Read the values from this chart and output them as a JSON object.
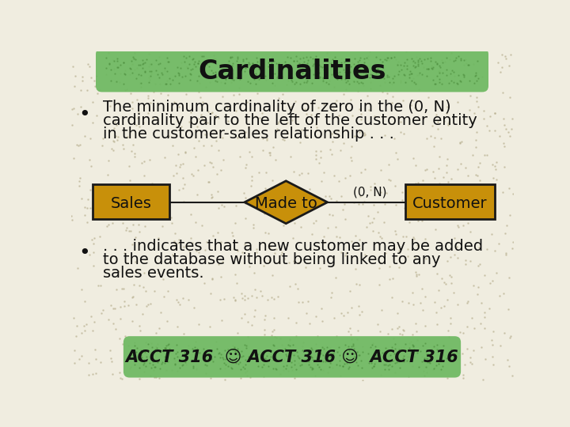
{
  "title": "Cardinalities",
  "title_bg_color": "#6db860",
  "background_color": "#f0ede0",
  "speckle_color": "#b8b090",
  "bullet1_line1": "The minimum cardinality of zero in the (0, N)",
  "bullet1_line2": "cardinality pair to the left of the customer entity",
  "bullet1_line3": "in the customer-sales relationship . . .",
  "bullet2_line1": ". . . indicates that a new customer may be added",
  "bullet2_line2": "to the database without being linked to any",
  "bullet2_line3": "sales events.",
  "sales_label": "Sales",
  "relation_label": "Made to",
  "cardinality_label": "(0, N)",
  "customer_label": "Customer",
  "entity_bg": "#c8900a",
  "entity_border": "#1a1a1a",
  "footer_bg": "#6db860",
  "footer_text1": "ACCT 316  ",
  "footer_smiley1": "☺",
  "footer_text2": " ACCT 316 ",
  "footer_smiley2": "☺",
  "footer_text3": "  ACCT 316",
  "text_color": "#111111",
  "font_size_title": 24,
  "font_size_body": 14,
  "font_size_diagram": 13,
  "font_size_footer": 15,
  "font_size_bullet": 18
}
